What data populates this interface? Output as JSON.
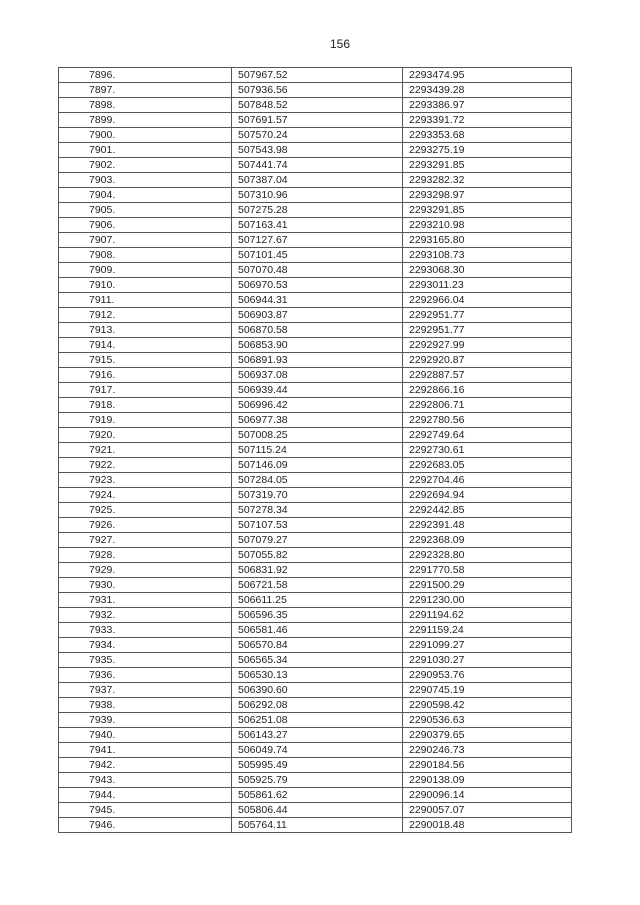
{
  "page_number": "156",
  "rows": [
    [
      "7896.",
      "507967.52",
      "2293474.95"
    ],
    [
      "7897.",
      "507936.56",
      "2293439.28"
    ],
    [
      "7898.",
      "507848.52",
      "2293386.97"
    ],
    [
      "7899.",
      "507691.57",
      "2293391.72"
    ],
    [
      "7900.",
      "507570.24",
      "2293353.68"
    ],
    [
      "7901.",
      "507543.98",
      "2293275.19"
    ],
    [
      "7902.",
      "507441.74",
      "2293291.85"
    ],
    [
      "7903.",
      "507387.04",
      "2293282.32"
    ],
    [
      "7904.",
      "507310.96",
      "2293298.97"
    ],
    [
      "7905.",
      "507275.28",
      "2293291.85"
    ],
    [
      "7906.",
      "507163.41",
      "2293210.98"
    ],
    [
      "7907.",
      "507127.67",
      "2293165.80"
    ],
    [
      "7908.",
      "507101.45",
      "2293108.73"
    ],
    [
      "7909.",
      "507070.48",
      "2293068.30"
    ],
    [
      "7910.",
      "506970.53",
      "2293011.23"
    ],
    [
      "7911.",
      "506944.31",
      "2292966.04"
    ],
    [
      "7912.",
      "506903.87",
      "2292951.77"
    ],
    [
      "7913.",
      "506870.58",
      "2292951.77"
    ],
    [
      "7914.",
      "506853.90",
      "2292927.99"
    ],
    [
      "7915.",
      "506891.93",
      "2292920.87"
    ],
    [
      "7916.",
      "506937.08",
      "2292887.57"
    ],
    [
      "7917.",
      "506939.44",
      "2292866.16"
    ],
    [
      "7918.",
      "506996.42",
      "2292806.71"
    ],
    [
      "7919.",
      "506977.38",
      "2292780.56"
    ],
    [
      "7920.",
      "507008.25",
      "2292749.64"
    ],
    [
      "7921.",
      "507115.24",
      "2292730.61"
    ],
    [
      "7922.",
      "507146.09",
      "2292683.05"
    ],
    [
      "7923.",
      "507284.05",
      "2292704.46"
    ],
    [
      "7924.",
      "507319.70",
      "2292694.94"
    ],
    [
      "7925.",
      "507278.34",
      "2292442.85"
    ],
    [
      "7926.",
      "507107.53",
      "2292391.48"
    ],
    [
      "7927.",
      "507079.27",
      "2292368.09"
    ],
    [
      "7928.",
      "507055.82",
      "2292328.80"
    ],
    [
      "7929.",
      "506831.92",
      "2291770.58"
    ],
    [
      "7930.",
      "506721.58",
      "2291500.29"
    ],
    [
      "7931.",
      "506611.25",
      "2291230.00"
    ],
    [
      "7932.",
      "506596.35",
      "2291194.62"
    ],
    [
      "7933.",
      "506581.46",
      "2291159.24"
    ],
    [
      "7934.",
      "506570.84",
      "2291099.27"
    ],
    [
      "7935.",
      "506565.34",
      "2291030.27"
    ],
    [
      "7936.",
      "506530.13",
      "2290953.76"
    ],
    [
      "7937.",
      "506390.60",
      "2290745.19"
    ],
    [
      "7938.",
      "506292.08",
      "2290598.42"
    ],
    [
      "7939.",
      "506251.08",
      "2290536.63"
    ],
    [
      "7940.",
      "506143.27",
      "2290379.65"
    ],
    [
      "7941.",
      "506049.74",
      "2290246.73"
    ],
    [
      "7942.",
      "505995.49",
      "2290184.56"
    ],
    [
      "7943.",
      "505925.79",
      "2290138.09"
    ],
    [
      "7944.",
      "505861.62",
      "2290096.14"
    ],
    [
      "7945.",
      "505806.44",
      "2290057.07"
    ],
    [
      "7946.",
      "505764.11",
      "2290018.48"
    ]
  ]
}
